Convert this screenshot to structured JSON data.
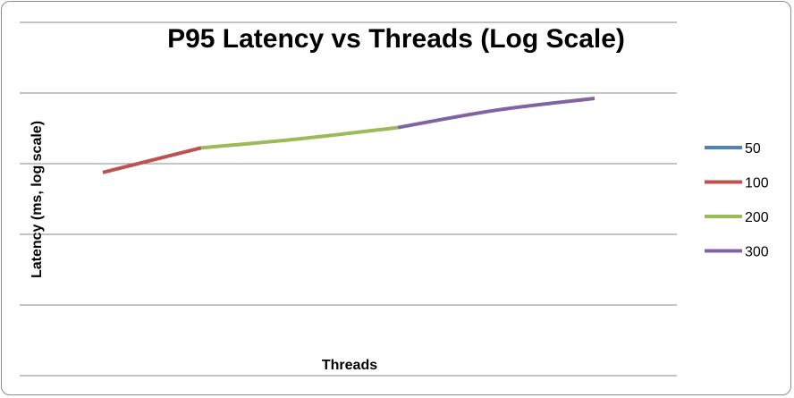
{
  "chart_data": {
    "type": "line",
    "title": "P95 Latency vs Threads (Log Scale)",
    "xlabel": "Threads",
    "ylabel": "Latency (ms, log scale)",
    "yscale": "log",
    "grid": true,
    "legend_position": "right",
    "series": [
      {
        "name": "50",
        "color": "#4F81BD",
        "points": []
      },
      {
        "name": "100",
        "color": "#C0504D",
        "points": [
          [
            50,
            560
          ],
          [
            100,
            690
          ]
        ]
      },
      {
        "name": "200",
        "color": "#9BBB59",
        "points": [
          [
            100,
            690
          ],
          [
            150,
            745
          ],
          [
            200,
            820
          ]
        ]
      },
      {
        "name": "300",
        "color": "#8064A2",
        "points": [
          [
            200,
            820
          ],
          [
            250,
            950
          ],
          [
            300,
            1050
          ]
        ]
      }
    ],
    "xlim": [
      50,
      300
    ],
    "ylim": [
      100,
      2000
    ]
  }
}
